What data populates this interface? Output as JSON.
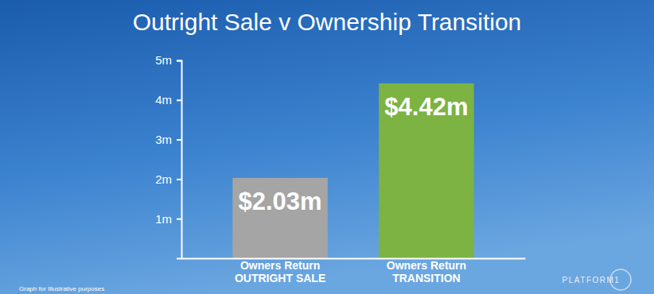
{
  "chart_data": {
    "type": "bar",
    "title": "Outright Sale v Ownership Transition",
    "categories": [
      "Owners Return\nOUTRIGHT SALE",
      "Owners Return\nTRANSITION"
    ],
    "values": [
      2.03,
      4.42
    ],
    "value_labels": [
      "$2.03m",
      "$4.42m"
    ],
    "colors": [
      "#a5a5a5",
      "#7cb342"
    ],
    "ylim": [
      0,
      5
    ],
    "yticks": [
      {
        "value": 1,
        "label": "1m"
      },
      {
        "value": 2,
        "label": "2m"
      },
      {
        "value": 3,
        "label": "3m"
      },
      {
        "value": 4,
        "label": "4m"
      },
      {
        "value": 5,
        "label": "5m"
      }
    ],
    "grid": false,
    "data_labels": true,
    "annotations": [
      "Graph for Illustrative purposes",
      "PLATFORM1"
    ]
  }
}
